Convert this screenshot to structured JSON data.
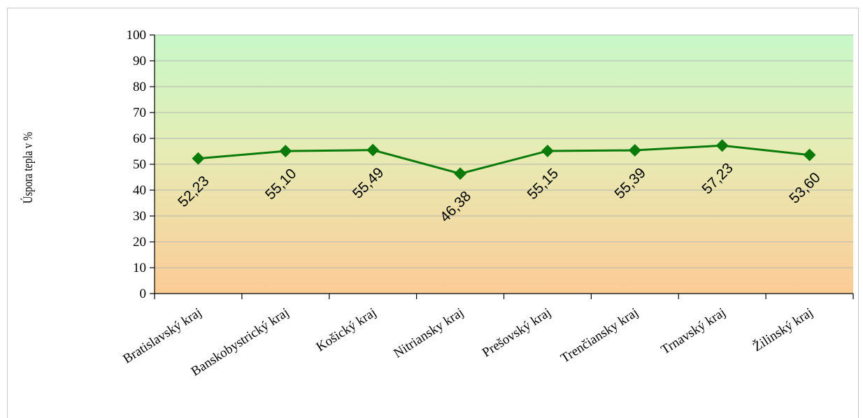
{
  "chart_data": {
    "type": "line",
    "title": "",
    "xlabel": "",
    "ylabel": "Úspora tepla v %",
    "ylim": [
      0,
      100
    ],
    "yticks": [
      0,
      10,
      20,
      30,
      40,
      50,
      60,
      70,
      80,
      90,
      100
    ],
    "grid": true,
    "categories": [
      "Bratislavský kraj",
      "Banskobystrický kraj",
      "Košický kraj",
      "Nitriansky kraj",
      "Prešovský kraj",
      "Trenčiansky kraj",
      "Trnavský kraj",
      "Žilinský kraj"
    ],
    "series": [
      {
        "values": [
          52.23,
          55.1,
          55.49,
          46.38,
          55.15,
          55.39,
          57.23,
          53.6
        ],
        "labels": [
          "52,23",
          "55,10",
          "55,49",
          "46,38",
          "55,15",
          "55,39",
          "57,23",
          "53,60"
        ],
        "color": "#0a7a0a"
      }
    ],
    "background_gradient": [
      "#c8f8c8",
      "#fccb96"
    ]
  }
}
